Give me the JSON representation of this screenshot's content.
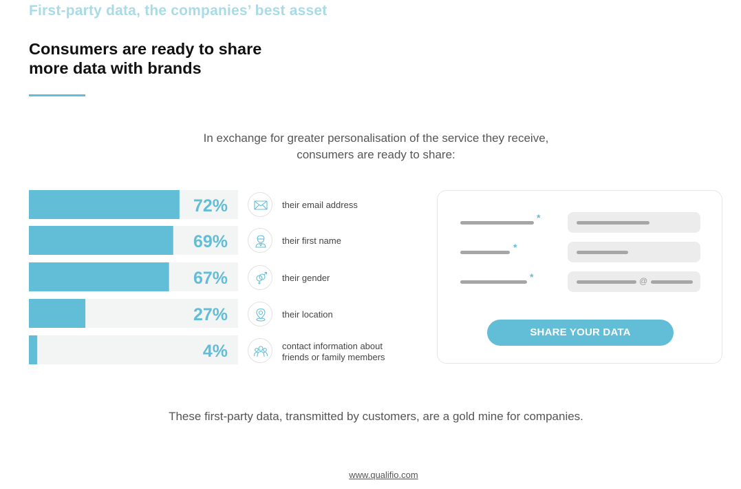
{
  "theme": {
    "accent": "#62bdd7",
    "accent_light": "#a8dbe8",
    "track": "#f3f4f4"
  },
  "header": {
    "eyebrow": "First-party data, the companies’ best asset",
    "headline_line1": "Consumers are ready to share",
    "headline_line2": "more data with brands"
  },
  "intro": {
    "line1": "In exchange for greater personalisation of the service they receive,",
    "line2": "consumers are ready to share:"
  },
  "chart_data": {
    "type": "bar",
    "orientation": "horizontal",
    "categories": [
      "their email address",
      "their first name",
      "their gender",
      "their location",
      "contact information about friends or family members"
    ],
    "values": [
      72,
      69,
      67,
      27,
      4
    ],
    "value_labels": [
      "72%",
      "69%",
      "67%",
      "27%",
      "4%"
    ],
    "xlim": [
      0,
      100
    ],
    "grid": false,
    "legend": "none"
  },
  "items": [
    {
      "label_line1": "their email address",
      "label_line2": "",
      "icon": "envelope-icon"
    },
    {
      "label_line1": "their first name",
      "label_line2": "",
      "icon": "person-icon"
    },
    {
      "label_line1": "their gender",
      "label_line2": "",
      "icon": "gender-icon"
    },
    {
      "label_line1": "their location",
      "label_line2": "",
      "icon": "location-pin-icon"
    },
    {
      "label_line1": "contact information about",
      "label_line2": "friends or family members",
      "icon": "group-icon"
    }
  ],
  "form": {
    "required_mark": "*",
    "at_sign": "@",
    "button_label": "SHARE YOUR DATA"
  },
  "footer": {
    "conclusion": "These first-party data, transmitted by customers, are a gold mine for companies.",
    "link": "www.qualifio.com"
  }
}
